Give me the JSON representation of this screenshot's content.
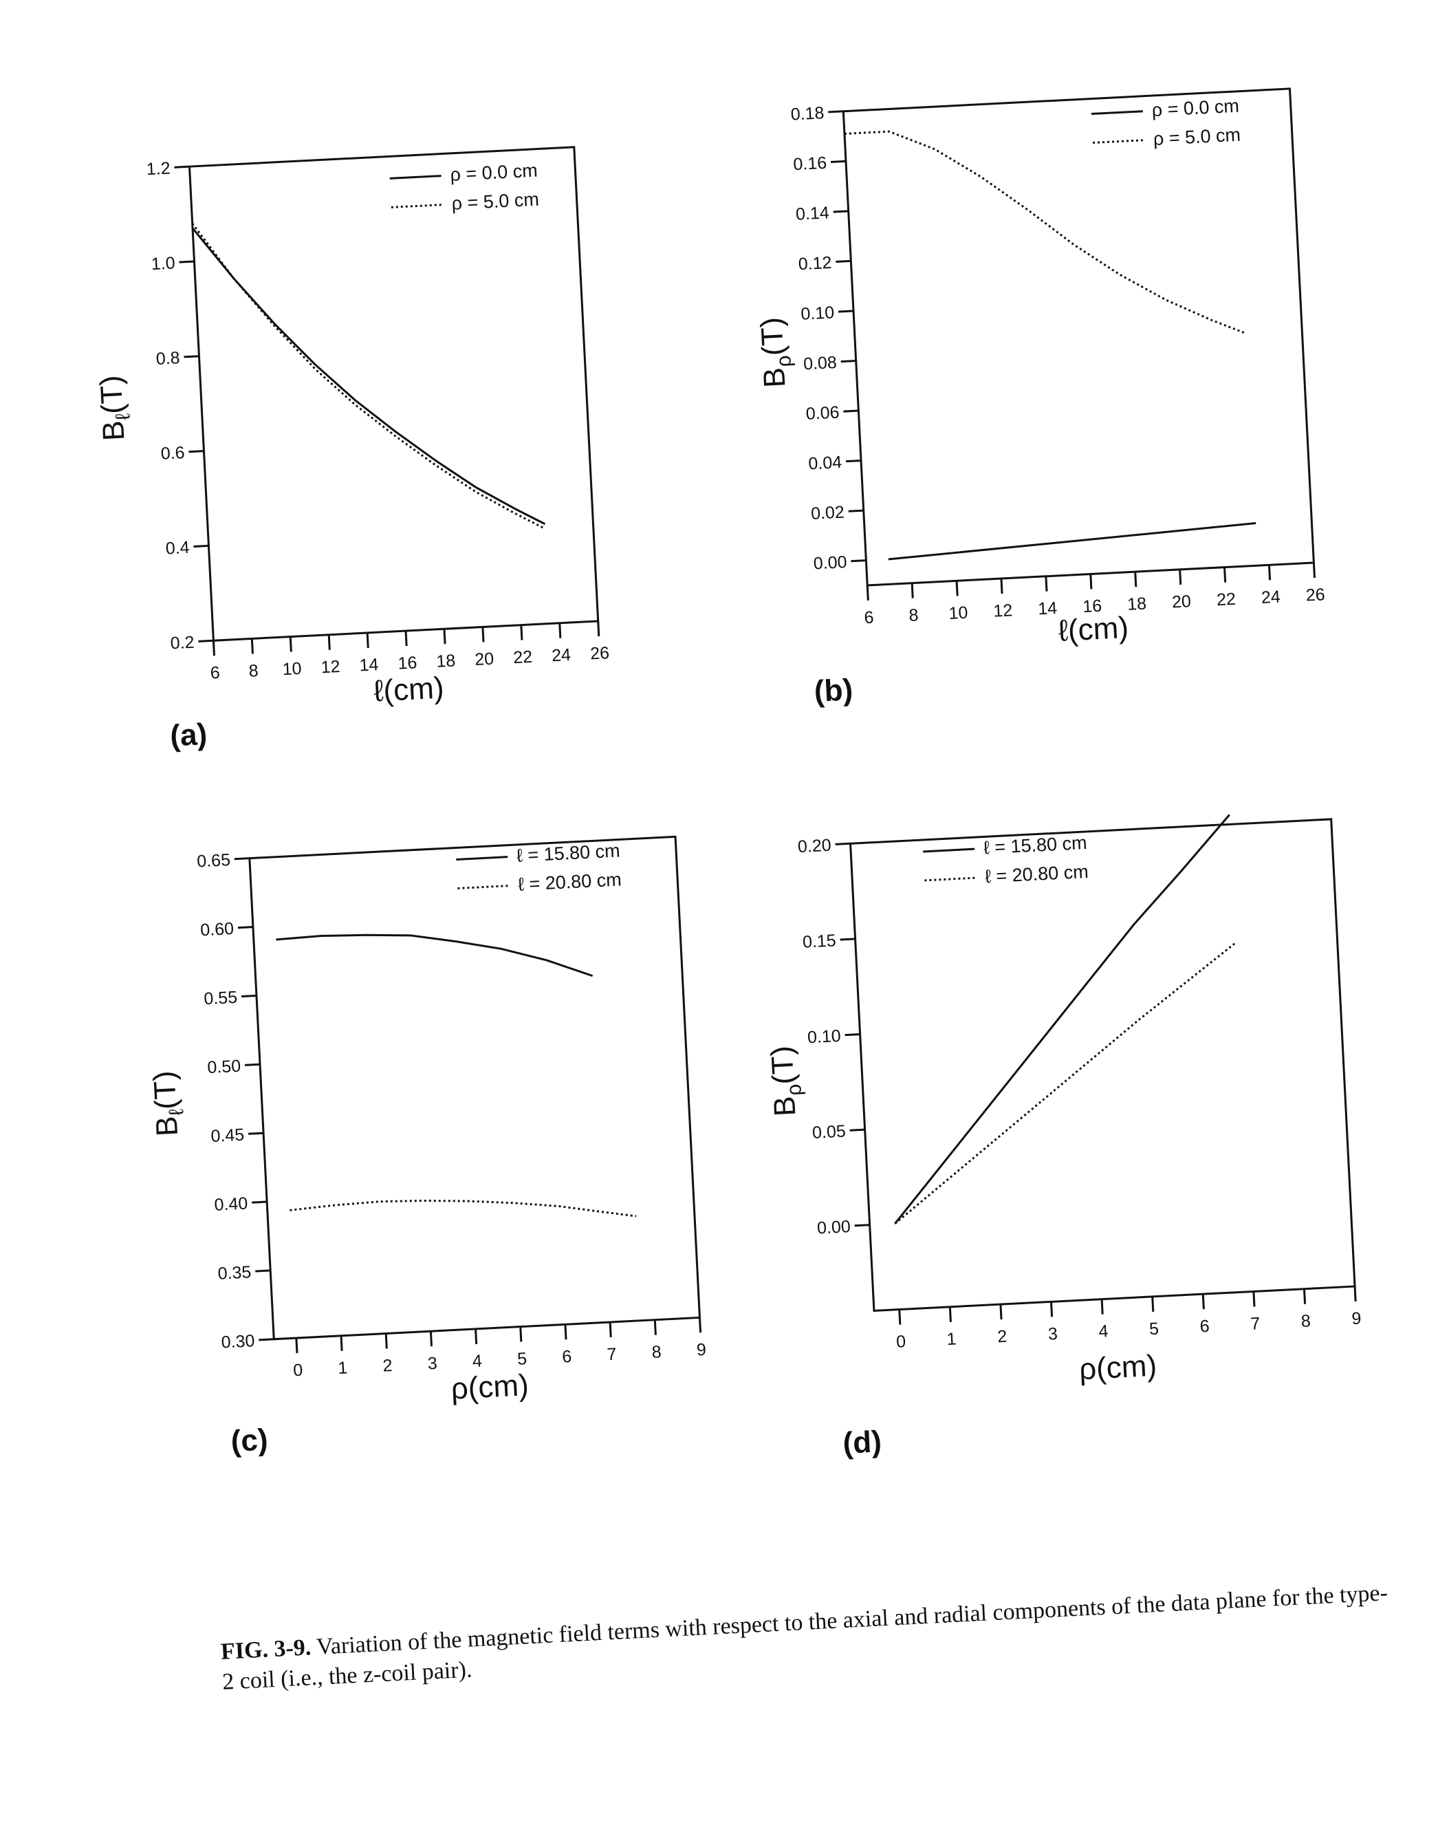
{
  "chart_data": [
    {
      "type": "line",
      "panel_label": "(a)",
      "xlabel": "ℓ(cm)",
      "ylabel": "Bℓ(T)",
      "ylabel_main": "B",
      "ylabel_sub": "ℓ",
      "ylabel_end": "(T)",
      "xlim": [
        6,
        26
      ],
      "ylim": [
        0.2,
        1.2
      ],
      "xticks": [
        "6",
        "8",
        "10",
        "12",
        "14",
        "16",
        "18",
        "20",
        "22",
        "24",
        "26"
      ],
      "xtick_values": [
        6,
        8,
        10,
        12,
        14,
        16,
        18,
        20,
        22,
        24,
        26
      ],
      "yticks": [
        "0.2",
        "0.4",
        "0.6",
        "0.8",
        "1.0",
        "1.2"
      ],
      "ytick_values": [
        0.2,
        0.4,
        0.6,
        0.8,
        1.0,
        1.2
      ],
      "legend_position": "top-right",
      "series": [
        {
          "name": "ρ = 0.0 cm",
          "style": "solid",
          "x": [
            6,
            8,
            10,
            12,
            14,
            16,
            18,
            20,
            22,
            23.5
          ],
          "y": [
            1.07,
            0.96,
            0.86,
            0.77,
            0.69,
            0.62,
            0.555,
            0.495,
            0.445,
            0.41
          ]
        },
        {
          "name": "ρ = 5.0 cm",
          "style": "dotted",
          "x": [
            6,
            8,
            10,
            12,
            14,
            16,
            18,
            20,
            22,
            23.5
          ],
          "y": [
            1.08,
            0.96,
            0.855,
            0.76,
            0.68,
            0.61,
            0.545,
            0.485,
            0.435,
            0.4
          ]
        }
      ]
    },
    {
      "type": "line",
      "panel_label": "(b)",
      "xlabel": "ℓ(cm)",
      "ylabel": "Bρ(T)",
      "ylabel_main": "B",
      "ylabel_sub": "ρ",
      "ylabel_end": "(T)",
      "xlim": [
        6,
        26
      ],
      "ylim": [
        -0.01,
        0.18
      ],
      "xticks": [
        "6",
        "8",
        "10",
        "12",
        "14",
        "16",
        "18",
        "20",
        "22",
        "24",
        "26"
      ],
      "xtick_values": [
        6,
        8,
        10,
        12,
        14,
        16,
        18,
        20,
        22,
        24,
        26
      ],
      "yticks": [
        "0.00",
        "0.02",
        "0.04",
        "0.06",
        "0.08",
        "0.10",
        "0.12",
        "0.14",
        "0.16",
        "0.18"
      ],
      "ytick_values": [
        0.0,
        0.02,
        0.04,
        0.06,
        0.08,
        0.1,
        0.12,
        0.14,
        0.16,
        0.18
      ],
      "legend_position": "top-right",
      "series": [
        {
          "name": "ρ = 0.0 cm",
          "style": "solid",
          "x": [
            7,
            23.5
          ],
          "y": [
            0.0,
            0.007
          ]
        },
        {
          "name": "ρ = 5.0 cm",
          "style": "dotted",
          "x": [
            6,
            8,
            10,
            12,
            14,
            16,
            18,
            20,
            22,
            23.5
          ],
          "y": [
            0.171,
            0.171,
            0.163,
            0.151,
            0.137,
            0.122,
            0.109,
            0.098,
            0.089,
            0.083
          ]
        }
      ]
    },
    {
      "type": "line",
      "panel_label": "(c)",
      "xlabel": "ρ(cm)",
      "ylabel": "Bℓ(T)",
      "ylabel_main": "B",
      "ylabel_sub": "ℓ",
      "ylabel_end": "(T)",
      "xlim": [
        -0.5,
        9
      ],
      "ylim": [
        0.3,
        0.65
      ],
      "xticks": [
        "0",
        "1",
        "2",
        "3",
        "4",
        "5",
        "6",
        "7",
        "8",
        "9"
      ],
      "xtick_values": [
        0,
        1,
        2,
        3,
        4,
        5,
        6,
        7,
        8,
        9
      ],
      "yticks": [
        "0.30",
        "0.35",
        "0.40",
        "0.45",
        "0.50",
        "0.55",
        "0.60",
        "0.65"
      ],
      "ytick_values": [
        0.3,
        0.35,
        0.4,
        0.45,
        0.5,
        0.55,
        0.6,
        0.65
      ],
      "legend_position": "top-right",
      "series": [
        {
          "name": "ℓ = 15.80 cm",
          "style": "solid",
          "x": [
            0,
            1,
            2,
            3,
            4,
            5,
            6,
            7
          ],
          "y": [
            0.59,
            0.591,
            0.59,
            0.588,
            0.582,
            0.575,
            0.565,
            0.552
          ]
        },
        {
          "name": "ℓ = 20.80 cm",
          "style": "dotted",
          "x": [
            0,
            1,
            2,
            3,
            4,
            5,
            6,
            7,
            7.7
          ],
          "y": [
            0.393,
            0.395,
            0.396,
            0.395,
            0.393,
            0.39,
            0.386,
            0.38,
            0.376
          ]
        }
      ]
    },
    {
      "type": "line",
      "panel_label": "(d)",
      "xlabel": "ρ(cm)",
      "ylabel": "Bρ(T)",
      "ylabel_main": "B",
      "ylabel_sub": "ρ",
      "ylabel_end": "(T)",
      "xlim": [
        -0.5,
        9
      ],
      "ylim": [
        -0.045,
        0.2
      ],
      "xticks": [
        "0",
        "1",
        "2",
        "3",
        "4",
        "5",
        "6",
        "7",
        "8",
        "9"
      ],
      "xtick_values": [
        0,
        1,
        2,
        3,
        4,
        5,
        6,
        7,
        8,
        9
      ],
      "yticks": [
        "0.00",
        "0.05",
        "0.10",
        "0.15",
        "0.20"
      ],
      "ytick_values": [
        0.0,
        0.05,
        0.1,
        0.15,
        0.2
      ],
      "legend_position": "top-left",
      "series": [
        {
          "name": "ℓ = 15.80 cm",
          "style": "solid",
          "x": [
            0,
            1,
            2,
            3,
            4,
            5,
            6,
            7
          ],
          "y": [
            0.0,
            0.03,
            0.06,
            0.09,
            0.12,
            0.15,
            0.177,
            0.205
          ]
        },
        {
          "name": "ℓ = 20.80 cm",
          "style": "dotted",
          "x": [
            0,
            1,
            2,
            3,
            4,
            5,
            6,
            7
          ],
          "y": [
            0.0,
            0.02,
            0.04,
            0.06,
            0.08,
            0.1,
            0.119,
            0.138
          ]
        }
      ]
    }
  ],
  "caption": {
    "label": "FIG. 3-9.",
    "text": "Variation of the magnetic field terms with respect to the axial and radial components of the data plane for the type-2 coil (i.e., the z-coil pair)."
  }
}
